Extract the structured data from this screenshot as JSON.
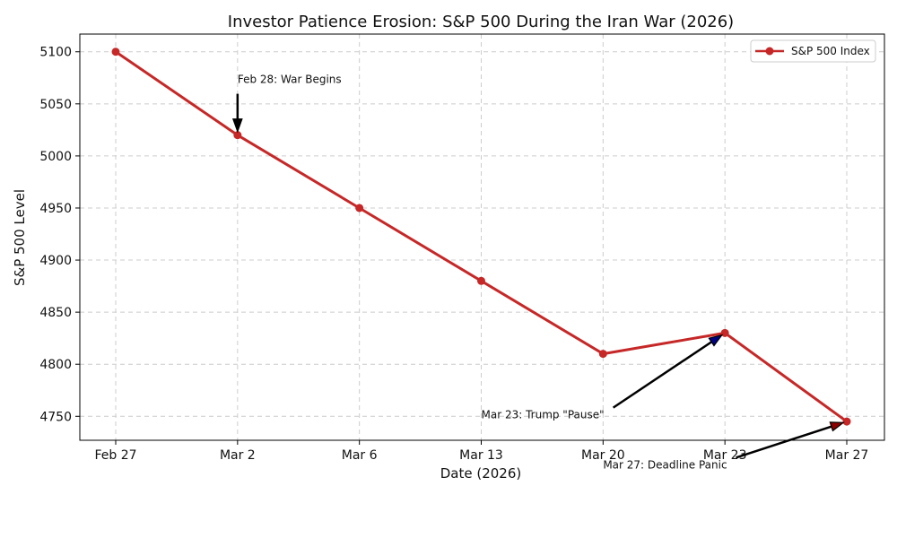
{
  "chart_data": {
    "type": "line",
    "title": "Investor Patience Erosion: S&P 500 During the Iran War (2026)",
    "xlabel": "Date (2026)",
    "ylabel": "S&P 500 Level",
    "categories": [
      "Feb 27",
      "Mar 2",
      "Mar 6",
      "Mar 13",
      "Mar 20",
      "Mar 23",
      "Mar 27"
    ],
    "series": [
      {
        "name": "S&P 500 Index",
        "color": "#c62828",
        "values": [
          5100,
          5020,
          4950,
          4880,
          4810,
          4830,
          4745
        ]
      }
    ],
    "ylim": [
      4727,
      5117
    ],
    "yticks": [
      4750,
      4800,
      4850,
      4900,
      4950,
      5000,
      5050,
      5100
    ],
    "grid": true,
    "legend": {
      "position": "top-right",
      "entries": [
        "S&P 500 Index"
      ]
    },
    "annotations": [
      {
        "text": "Feb 28: War Begins",
        "target_category": "Mar 2",
        "target_value": 5020,
        "text_category_index": 1.0,
        "text_value": 5070,
        "arrow_color": "#000000",
        "align": "left"
      },
      {
        "text": "Mar 23: Trump \"Pause\"",
        "target_category": "Mar 23",
        "target_value": 4830,
        "text_category_index": 3.0,
        "text_value": 4748,
        "arrow_color": "#000080",
        "align": "left"
      },
      {
        "text": "Mar 27: Deadline Panic",
        "target_category": "Mar 27",
        "target_value": 4745,
        "text_category_index": 4.0,
        "text_value": 4700,
        "arrow_color": "#8b0000",
        "align": "left"
      }
    ]
  }
}
